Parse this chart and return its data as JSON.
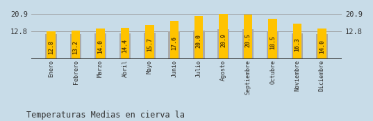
{
  "categories": [
    "Enero",
    "Febrero",
    "Marzo",
    "Abril",
    "Mayo",
    "Junio",
    "Julio",
    "Agosto",
    "Septiembre",
    "Octubre",
    "Noviembre",
    "Diciembre"
  ],
  "values": [
    12.8,
    13.2,
    14.0,
    14.4,
    15.7,
    17.6,
    20.0,
    20.9,
    20.5,
    18.5,
    16.3,
    14.0
  ],
  "gray_values": [
    11.5,
    11.5,
    11.8,
    11.8,
    12.2,
    12.8,
    13.2,
    13.8,
    13.8,
    12.5,
    11.8,
    11.5
  ],
  "bar_color": "#FFC300",
  "gray_color": "#AAAAAA",
  "background_color": "#C8DCE8",
  "text_color": "#5A3E00",
  "title": "Temperaturas Medias en cierva la",
  "ylim_min": 0,
  "ylim_max": 22.5,
  "yticks": [
    12.8,
    20.9
  ],
  "title_fontsize": 8.5,
  "value_fontsize": 6.0,
  "bar_width": 0.35
}
